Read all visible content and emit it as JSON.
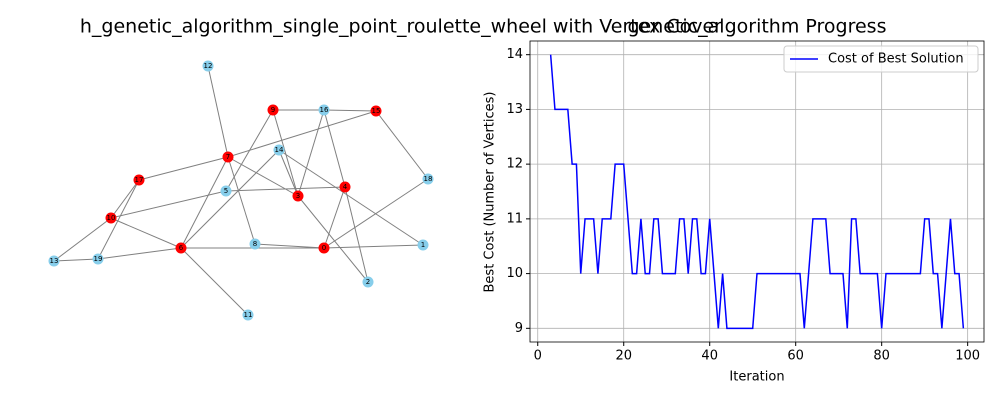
{
  "chart_data": [
    {
      "type": "network",
      "title": "h_genetic_algorithm_single_point_roulette_wheel with Vertex Cover",
      "nodes": [
        {
          "label": "0",
          "color": "#ff0000"
        },
        {
          "label": "1",
          "color": "#87ceeb"
        },
        {
          "label": "2",
          "color": "#87ceeb"
        },
        {
          "label": "3",
          "color": "#ff0000"
        },
        {
          "label": "4",
          "color": "#ff0000"
        },
        {
          "label": "5",
          "color": "#87ceeb"
        },
        {
          "label": "6",
          "color": "#ff0000"
        },
        {
          "label": "7",
          "color": "#ff0000"
        },
        {
          "label": "8",
          "color": "#87ceeb"
        },
        {
          "label": "9",
          "color": "#ff0000"
        },
        {
          "label": "10",
          "color": "#ff0000"
        },
        {
          "label": "11",
          "color": "#87ceeb"
        },
        {
          "label": "12",
          "color": "#87ceeb"
        },
        {
          "label": "13",
          "color": "#87ceeb"
        },
        {
          "label": "14",
          "color": "#87ceeb"
        },
        {
          "label": "15",
          "color": "#ff0000"
        },
        {
          "label": "16",
          "color": "#87ceeb"
        },
        {
          "label": "17",
          "color": "#ff0000"
        },
        {
          "label": "18",
          "color": "#87ceeb"
        },
        {
          "label": "19",
          "color": "#87ceeb"
        }
      ],
      "edges": [
        [
          "12",
          "7"
        ],
        [
          "9",
          "16"
        ],
        [
          "16",
          "15"
        ],
        [
          "9",
          "3"
        ],
        [
          "9",
          "5"
        ],
        [
          "16",
          "4"
        ],
        [
          "16",
          "3"
        ],
        [
          "15",
          "7"
        ],
        [
          "15",
          "18"
        ],
        [
          "14",
          "3"
        ],
        [
          "14",
          "1"
        ],
        [
          "14",
          "6"
        ],
        [
          "7",
          "17"
        ],
        [
          "7",
          "3"
        ],
        [
          "7",
          "8"
        ],
        [
          "7",
          "6"
        ],
        [
          "5",
          "4"
        ],
        [
          "5",
          "10"
        ],
        [
          "17",
          "10"
        ],
        [
          "17",
          "19"
        ],
        [
          "10",
          "13"
        ],
        [
          "10",
          "6"
        ],
        [
          "6",
          "19"
        ],
        [
          "6",
          "0"
        ],
        [
          "6",
          "11"
        ],
        [
          "13",
          "19"
        ],
        [
          "8",
          "0"
        ],
        [
          "0",
          "1"
        ],
        [
          "0",
          "18"
        ],
        [
          "0",
          "4"
        ],
        [
          "4",
          "2"
        ],
        [
          "3",
          "2"
        ]
      ]
    },
    {
      "type": "line",
      "title": "genetic_algorithm Progress",
      "x_label": "Iteration",
      "y_label": "Best Cost (Number of Vertices)",
      "x": [
        3,
        4,
        5,
        6,
        7,
        8,
        9,
        10,
        11,
        12,
        13,
        14,
        15,
        16,
        17,
        18,
        19,
        20,
        21,
        22,
        23,
        24,
        25,
        26,
        27,
        28,
        29,
        30,
        31,
        32,
        33,
        34,
        35,
        36,
        37,
        38,
        39,
        40,
        41,
        42,
        43,
        44,
        45,
        46,
        47,
        48,
        49,
        50,
        51,
        52,
        53,
        54,
        55,
        56,
        57,
        58,
        59,
        60,
        61,
        62,
        63,
        64,
        65,
        66,
        67,
        68,
        69,
        70,
        71,
        72,
        73,
        74,
        75,
        76,
        77,
        78,
        79,
        80,
        81,
        82,
        83,
        84,
        85,
        86,
        87,
        88,
        89,
        90,
        91,
        92,
        93,
        94,
        95,
        96,
        97,
        98,
        99
      ],
      "series": [
        {
          "name": "Cost of Best Solution",
          "color": "#0000ff",
          "values": [
            14,
            13,
            13,
            13,
            13,
            12,
            12,
            10,
            11,
            11,
            11,
            10,
            11,
            11,
            11,
            12,
            12,
            12,
            11,
            10,
            10,
            11,
            10,
            10,
            11,
            11,
            10,
            10,
            10,
            10,
            11,
            11,
            10,
            11,
            11,
            10,
            10,
            11,
            10,
            9,
            10,
            9,
            9,
            9,
            9,
            9,
            9,
            9,
            10,
            10,
            10,
            10,
            10,
            10,
            10,
            10,
            10,
            10,
            10,
            9,
            10,
            11,
            11,
            11,
            11,
            10,
            10,
            10,
            10,
            9,
            11,
            11,
            10,
            10,
            10,
            10,
            10,
            9,
            10,
            10,
            10,
            10,
            10,
            10,
            10,
            10,
            10,
            11,
            11,
            10,
            10,
            9,
            10,
            11,
            10,
            10,
            9
          ]
        }
      ],
      "xlim": [
        -1.8,
        103.8
      ],
      "xticks": [
        0,
        20,
        40,
        60,
        80,
        100
      ],
      "ylim": [
        8.75,
        14.25
      ],
      "yticks": [
        9,
        10,
        11,
        12,
        13,
        14
      ],
      "grid": true,
      "legend": "upper right"
    }
  ]
}
